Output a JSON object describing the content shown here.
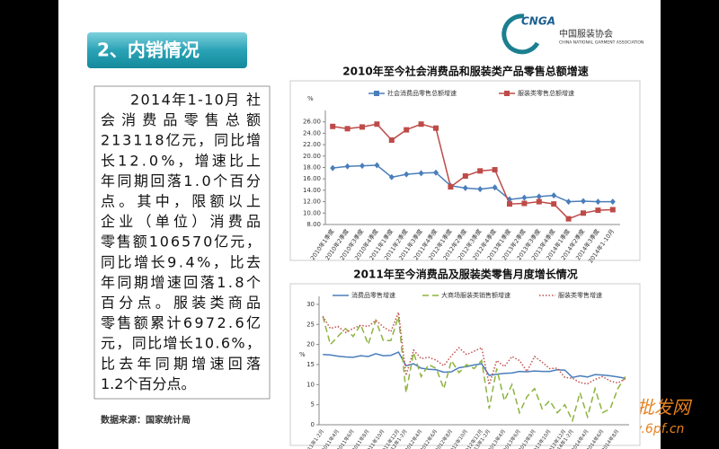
{
  "slide": {
    "title": "2、内销情况",
    "logo": {
      "mark": "CNGA",
      "name": "中国服装协会",
      "english": "CHINA NATIONAL GARMENT ASSOCIATION"
    },
    "paragraph": [
      "2014年1-10月 社",
      "会消费品零售总额",
      "213118亿元，同比增",
      "长12.0%，增速比上",
      "年同期回落1.0个百分",
      "点。其中，限额以上",
      "企业（单位）消费品",
      "零售额106570亿元，",
      "同比增长9.4%，比去",
      "年同期增速回落1.8个",
      "百分点。服装类商品",
      "零售额累计6972.6亿",
      "元，同比增长10.6%，",
      "比去年同期增速回落",
      "1.2个百分点。"
    ],
    "source": "数据来源：国家统计局",
    "watermark": "货源批发网",
    "watermark_url": "www.6pf.cn"
  },
  "chart_data": [
    {
      "type": "line",
      "title": "2010年至今社会消费品和服装类产品零售总额增速",
      "y_unit": "%",
      "markers": true,
      "categories": [
        "2010年1季度",
        "2010年2季度",
        "2010年3季度",
        "2010年4季度",
        "2011年1季度",
        "2011年2季度",
        "2011年3季度",
        "2011年4季度",
        "2012年1季度",
        "2012年2季度",
        "2012年3季度",
        "2012年4季度",
        "2013年1季度",
        "2013年2季度",
        "2013年3季度",
        "2013年4季度",
        "2014年1季度",
        "2014年2季度",
        "2014年3季度",
        "2014年1-10月"
      ],
      "series": [
        {
          "name": "社会消费品零售总额增速",
          "color": "#4a7ebb",
          "marker": "diamond",
          "values": [
            17.9,
            18.2,
            18.3,
            18.4,
            16.3,
            16.8,
            17.0,
            17.1,
            14.8,
            14.4,
            14.2,
            14.5,
            12.4,
            12.7,
            12.9,
            13.1,
            12.0,
            12.1,
            12.0,
            12.0
          ]
        },
        {
          "name": "服装类零售总额增速",
          "color": "#be4b48",
          "marker": "square",
          "values": [
            25.2,
            24.8,
            25.1,
            25.6,
            22.8,
            24.6,
            25.6,
            24.9,
            14.6,
            16.5,
            17.4,
            17.6,
            11.6,
            11.7,
            12.0,
            11.6,
            9.0,
            10.0,
            10.5,
            10.6
          ]
        }
      ],
      "ylim": [
        8,
        28
      ],
      "yticks": [
        {
          "value": 8,
          "label": "8.00"
        },
        {
          "value": 10,
          "label": "10.00"
        },
        {
          "value": 12,
          "label": "12.00"
        },
        {
          "value": 14,
          "label": "14.00"
        },
        {
          "value": 16,
          "label": "16.00"
        },
        {
          "value": 18,
          "label": "18.00"
        },
        {
          "value": 20,
          "label": "20.00"
        },
        {
          "value": 22,
          "label": "22.00"
        },
        {
          "value": 24,
          "label": "24.00"
        },
        {
          "value": 26,
          "label": "26.00"
        }
      ],
      "grid": false
    },
    {
      "type": "line",
      "title": "2011年至今消费品及服装类零售月度增长情况",
      "y_unit": "%",
      "markers": false,
      "categories": [
        "2011年1-2月",
        null,
        "2011年4月",
        null,
        "2011年6月",
        null,
        "2011年8月",
        null,
        "2011年10月",
        null,
        "2011年12月",
        "2012年1-2月",
        null,
        "2012年4月",
        null,
        "2012年6月",
        null,
        "2012年8月",
        null,
        "2012年10月",
        null,
        "2012年12月",
        "2013年1-2月",
        null,
        "2013年4月",
        null,
        "2013年6月",
        null,
        "2013年8月",
        null,
        "2013年10月",
        null,
        "2013年12月",
        "2014年1-2月",
        null,
        "2014年4月",
        null,
        "2014年6月",
        null,
        "2014年8月",
        null
      ],
      "series": [
        {
          "name": "消费品零售增速",
          "color": "#4a7ebb",
          "dash": "solid",
          "values": [
            17.5,
            17.4,
            17.1,
            16.9,
            16.8,
            17.2,
            17.0,
            17.7,
            17.2,
            17.3,
            18.1,
            14.7,
            15.2,
            14.1,
            13.8,
            13.7,
            13.1,
            13.2,
            14.2,
            14.5,
            14.9,
            15.2,
            12.3,
            12.6,
            12.8,
            12.9,
            13.3,
            13.2,
            13.4,
            13.3,
            13.3,
            13.7,
            13.6,
            11.8,
            12.2,
            11.9,
            12.5,
            12.4,
            12.2,
            11.9,
            11.6
          ]
        },
        {
          "name": "大商场服装类销售额增速",
          "color": "#8db33f",
          "dash": "dashed",
          "values": [
            27,
            20,
            22,
            24,
            22,
            25,
            20,
            26,
            21,
            21,
            27,
            8,
            18,
            12,
            15,
            14,
            9,
            16,
            13,
            15,
            14,
            16,
            4,
            14,
            6,
            10,
            3,
            7,
            9,
            4,
            6,
            3,
            5,
            1,
            8,
            2,
            9,
            3,
            4,
            9,
            12
          ]
        },
        {
          "name": "服装类零售增速",
          "color": "#c0504d",
          "dash": "dotted",
          "values": [
            27,
            24,
            24.5,
            23,
            24,
            24.8,
            24.5,
            26,
            24.4,
            23.2,
            28,
            12.3,
            18.6,
            16.5,
            16.8,
            16.1,
            14.7,
            17.2,
            19.2,
            17.5,
            18.3,
            19.2,
            10,
            16,
            14.5,
            17,
            16,
            13.3,
            17,
            15.6,
            14,
            14.1,
            11.8,
            11.6,
            10.5,
            10.2,
            11.3,
            12,
            10.9,
            10.4,
            11.5
          ]
        }
      ],
      "ylim": [
        0,
        32
      ],
      "yticks": [
        0,
        5,
        10,
        15,
        20,
        25,
        30
      ],
      "grid": false
    }
  ]
}
